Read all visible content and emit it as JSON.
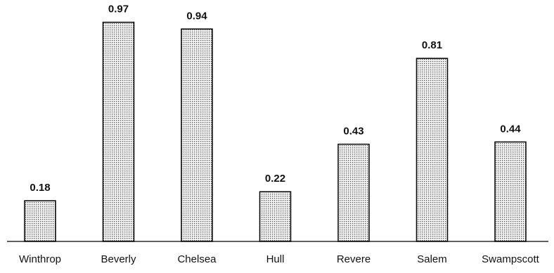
{
  "chart_data": {
    "type": "bar",
    "title": "",
    "xlabel": "",
    "ylabel": "",
    "categories": [
      "Winthrop",
      "Beverly",
      "Chelsea",
      "Hull",
      "Revere",
      "Salem",
      "Swampscott"
    ],
    "values": [
      0.18,
      0.97,
      0.94,
      0.22,
      0.43,
      0.81,
      0.44
    ],
    "value_labels": [
      "0.18",
      "0.97",
      "0.94",
      "0.22",
      "0.43",
      "0.81",
      "0.44"
    ],
    "ylim": [
      0,
      1
    ],
    "grid": false,
    "legend": "none",
    "colors": {
      "bar_fill": "#f4f4f4",
      "bar_pattern_dot": "#555555",
      "bar_outline": "#000000",
      "axis": "#000000"
    }
  }
}
